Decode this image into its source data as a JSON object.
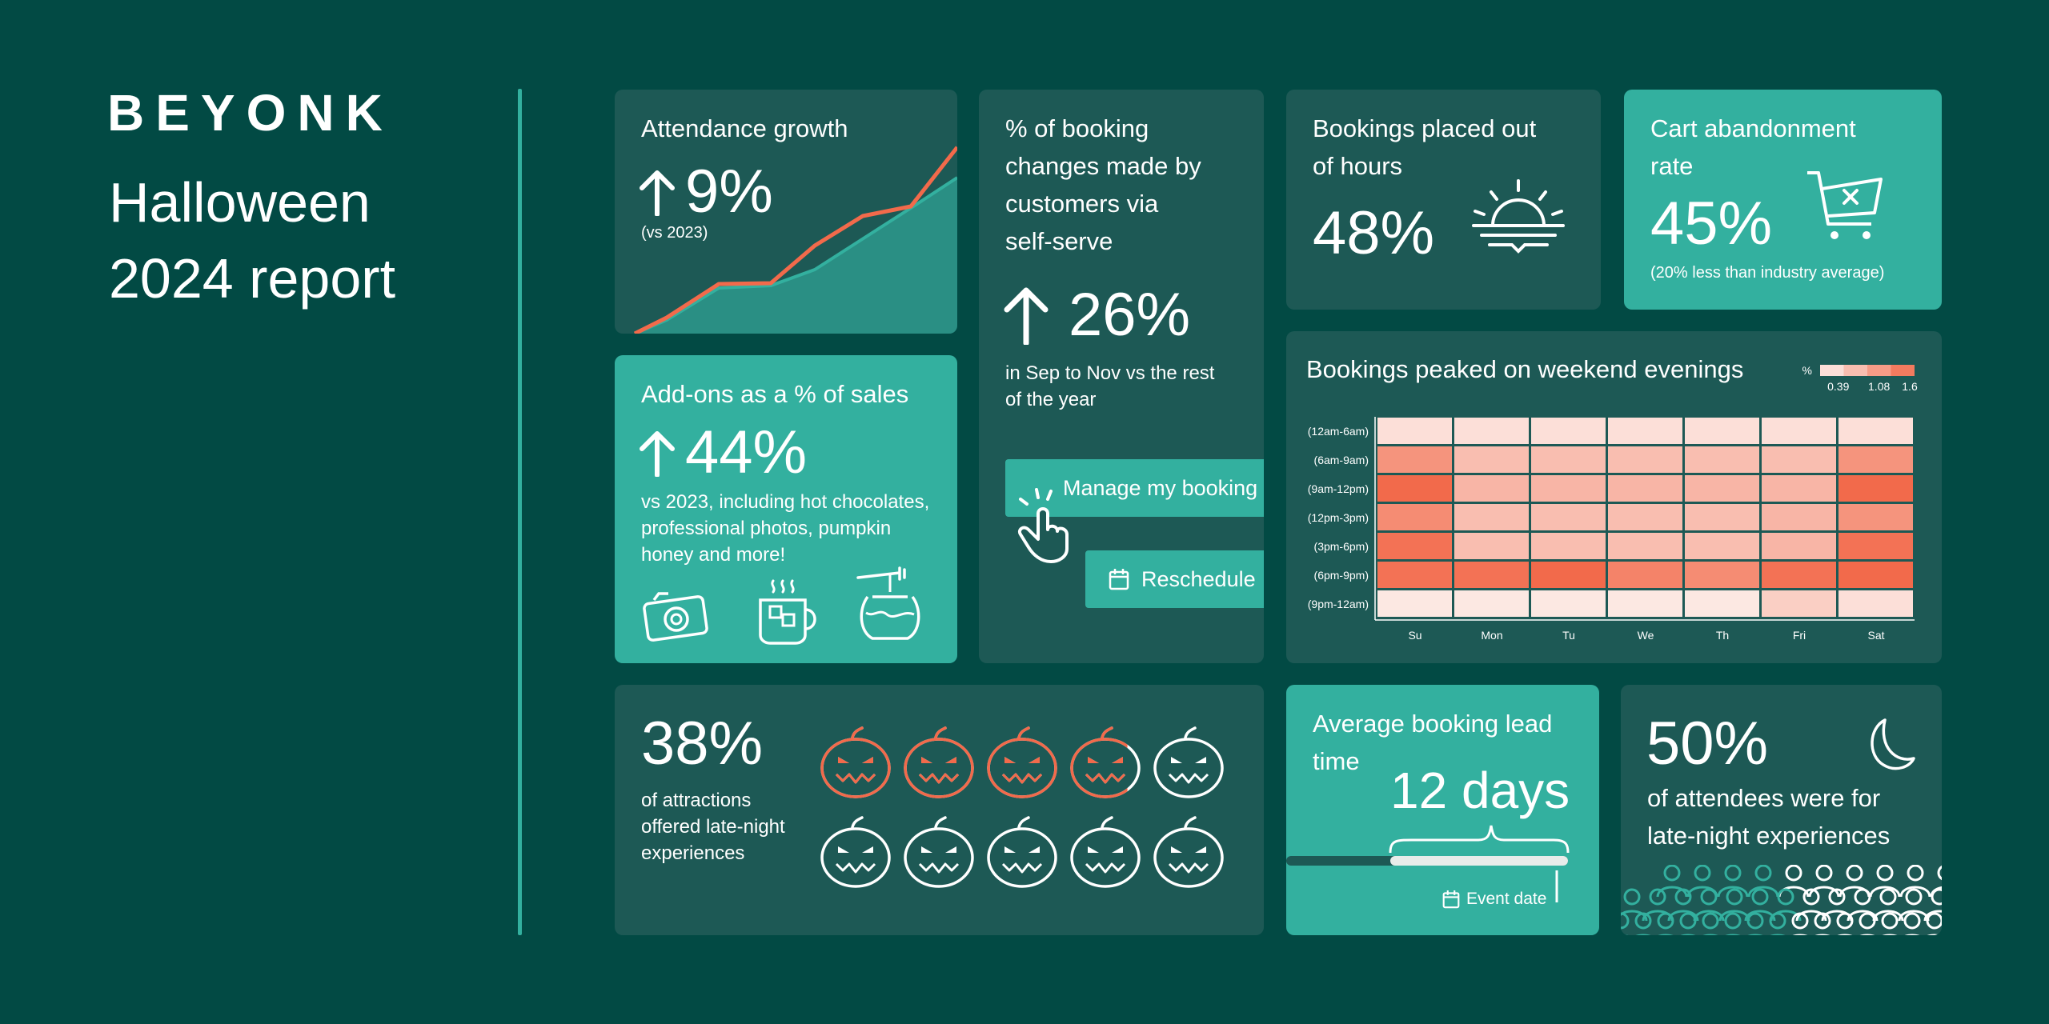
{
  "brand": {
    "logo_text": "BEYONK",
    "title_line1": "Halloween",
    "title_line2": "2024 report"
  },
  "colors": {
    "background": "#024a44",
    "card_dark": "#1d5955",
    "card_teal": "#33b09f",
    "accent_orange": "#f26a4b"
  },
  "attendance": {
    "title": "Attendance growth",
    "value": "9%",
    "note": "(vs 2023)",
    "arrow_icon": "arrow-up-icon"
  },
  "booking_changes": {
    "title_lines": [
      "% of booking",
      "changes made by",
      "customers via",
      "self-serve"
    ],
    "value": "26%",
    "note_lines": [
      "in Sep to Nov vs the rest",
      "of the year"
    ],
    "manage_label": "Manage my booking",
    "reschedule_label": "Reschedule"
  },
  "out_of_hours": {
    "title_lines": [
      "Bookings placed out",
      "of hours"
    ],
    "value": "48%",
    "icon": "sunset-icon"
  },
  "cart": {
    "title_lines": [
      "Cart abandonment",
      "rate"
    ],
    "value": "45%",
    "note": "(20% less than industry average)",
    "icon": "cart-x-icon"
  },
  "addons": {
    "title": "Add-ons as a % of sales",
    "value": "44%",
    "note_lines": [
      "vs 2023, including hot chocolates,",
      "professional photos, pumpkin",
      "honey and more!"
    ],
    "icons": [
      "camera-icon",
      "hot-chocolate-icon",
      "honey-pot-icon"
    ]
  },
  "late_night_attractions": {
    "value": "38%",
    "note_lines": [
      "of attractions",
      "offered late-night",
      "experiences"
    ],
    "fraction": 0.38
  },
  "lead_time": {
    "title_lines": [
      "Average booking lead",
      "time"
    ],
    "value": "12 days",
    "event_label": "Event date"
  },
  "attendees": {
    "value": "50%",
    "note_lines": [
      "of attendees were for",
      "late-night experiences"
    ],
    "fraction": 0.5,
    "icon": "moon-icon"
  },
  "chart_data": {
    "type": "heatmap",
    "title": "Bookings peaked on weekend evenings",
    "legend_title": "%",
    "legend_ticks": [
      "0.39",
      "1.08",
      "1.6"
    ],
    "xlabels": [
      "Su",
      "Mon",
      "Tu",
      "We",
      "Th",
      "Fri",
      "Sat"
    ],
    "ylabels": [
      "(12am-6am)",
      "(6am-9am)",
      "(9am-12pm)",
      "(12pm-3pm)",
      "(3pm-6pm)",
      "(6pm-9pm)",
      "(9pm-12am)"
    ],
    "values": [
      [
        0.2,
        0.2,
        0.2,
        0.2,
        0.2,
        0.2,
        0.2
      ],
      [
        1.1,
        0.6,
        0.6,
        0.6,
        0.6,
        0.6,
        1.1
      ],
      [
        1.6,
        0.7,
        0.7,
        0.7,
        0.7,
        0.7,
        1.6
      ],
      [
        1.2,
        0.6,
        0.6,
        0.6,
        0.6,
        0.7,
        1.1
      ],
      [
        1.5,
        0.6,
        0.6,
        0.6,
        0.6,
        0.7,
        1.5
      ],
      [
        1.5,
        1.5,
        1.6,
        1.3,
        1.2,
        1.5,
        1.6
      ],
      [
        0.1,
        0.1,
        0.1,
        0.1,
        0.1,
        0.4,
        0.2
      ]
    ],
    "range": [
      0,
      1.6
    ]
  }
}
